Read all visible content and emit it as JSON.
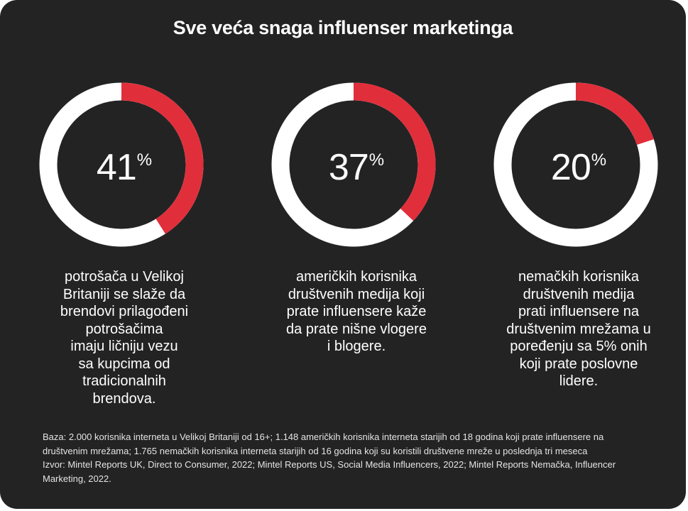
{
  "title": "Sve veća snaga influenser marketinga",
  "colors": {
    "background": "#232323",
    "ring": "#ffffff",
    "accent": "#e02f3b",
    "text": "#ffffff"
  },
  "chart_data": [
    {
      "type": "donut",
      "value": 41,
      "unit": "%",
      "label_lines": [
        "potrošača u Velikoj",
        "Britaniji se slaže da",
        "brendovi prilagođeni",
        "potrošačima",
        "imaju ličniju vezu",
        "sa kupcima od",
        "tradicionalnih",
        "brendova."
      ]
    },
    {
      "type": "donut",
      "value": 37,
      "unit": "%",
      "label_lines": [
        "američkih korisnika",
        "društvenih medija koji",
        "prate influensere kaže",
        "da prate nišne vlogere",
        "i blogere."
      ]
    },
    {
      "type": "donut",
      "value": 20,
      "unit": "%",
      "label_lines": [
        "nemačkih korisnika",
        "društvenih medija",
        "prati influensere na",
        "društvenim mrežama u",
        "poređenju sa 5% onih",
        "koji prate poslovne",
        "lidere."
      ]
    }
  ],
  "footnote": [
    "Baza: 2.000 korisnika interneta u Velikoj Britaniji od 16+; 1.148 američkih korisnika interneta starijih od 18 godina koji prate influensere na",
    "društvenim mrežama; 1.765 nemačkih korisnika interneta starijih od 16 godina koji su koristili društvene mreže u poslednja tri meseca",
    "Izvor: Mintel Reports UK, Direct to Consumer, 2022; Mintel Reports US, Social Media Influencers, 2022; Mintel Reports Nemačka, Influencer",
    "Marketing, 2022."
  ]
}
